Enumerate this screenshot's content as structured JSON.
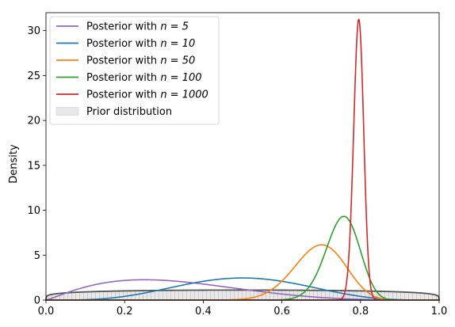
{
  "chart_data": {
    "type": "line",
    "title": "",
    "xlabel": "",
    "ylabel": "Density",
    "xlim": [
      0.0,
      1.0
    ],
    "ylim": [
      0,
      32
    ],
    "xticks": [
      0.0,
      0.2,
      0.4,
      0.6,
      0.8,
      1.0
    ],
    "xtick_labels": [
      "0.0",
      "0.2",
      "0.4",
      "0.6",
      "0.8",
      "1.0"
    ],
    "yticks": [
      0,
      5,
      10,
      15,
      20,
      25,
      30
    ],
    "ytick_labels": [
      "0",
      "5",
      "10",
      "15",
      "20",
      "25",
      "30"
    ],
    "grid": false,
    "legend_position": "top-left",
    "prior": {
      "name": "Prior distribution",
      "alpha": 1.2,
      "beta": 1.2,
      "fill_color": "#e8e8e8",
      "edge_color": "#555555"
    },
    "series": [
      {
        "name": "Posterior with n = 5",
        "legend_prefix": "Posterior with ",
        "legend_math": "n = 5",
        "alpha": 2.2,
        "beta": 4.6,
        "color": "#9467bd"
      },
      {
        "name": "Posterior with n = 10",
        "legend_prefix": "Posterior with ",
        "legend_math": "n = 10",
        "alpha": 5.0,
        "beta": 5.0,
        "color": "#1f77b4"
      },
      {
        "name": "Posterior with n = 50",
        "legend_prefix": "Posterior with ",
        "legend_math": "n = 50",
        "alpha": 35.0,
        "beta": 15.5,
        "color": "#ff7f0e"
      },
      {
        "name": "Posterior with n = 100",
        "legend_prefix": "Posterior with ",
        "legend_math": "n = 100",
        "alpha": 76.0,
        "beta": 25.0,
        "color": "#2ca02c"
      },
      {
        "name": "Posterior with n = 1000",
        "legend_prefix": "Posterior with ",
        "legend_math": "n = 1000",
        "alpha": 795.0,
        "beta": 205.0,
        "color": "#d62728"
      }
    ]
  }
}
